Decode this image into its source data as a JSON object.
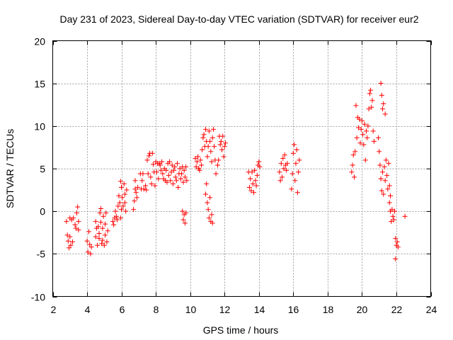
{
  "chart_data": {
    "type": "scatter",
    "title": "Day 231 of 2023, Sidereal Day-to-day VTEC variation (SDTVAR) for receiver eur2",
    "xlabel": "GPS time / hours",
    "ylabel": "SDTVAR / TECUs",
    "xlim": [
      2,
      24
    ],
    "ylim": [
      -10,
      20
    ],
    "xticks": [
      2,
      4,
      6,
      8,
      10,
      12,
      14,
      16,
      18,
      20,
      22,
      24
    ],
    "yticks": [
      -10,
      -5,
      0,
      5,
      10,
      15,
      20
    ],
    "grid": true,
    "marker": "+",
    "color": "#ff0000",
    "series": [
      {
        "name": "SDTVAR",
        "points": [
          [
            2.8,
            -1.2
          ],
          [
            2.85,
            -2.8
          ],
          [
            2.9,
            -3.5
          ],
          [
            2.95,
            -4.3
          ],
          [
            3.0,
            -3.0
          ],
          [
            3.0,
            -0.8
          ],
          [
            3.05,
            -4.0
          ],
          [
            3.1,
            -1.0
          ],
          [
            3.15,
            -3.6
          ],
          [
            3.2,
            -0.8
          ],
          [
            3.3,
            -1.6
          ],
          [
            3.35,
            -2.0
          ],
          [
            3.4,
            -0.2
          ],
          [
            3.45,
            0.5
          ],
          [
            3.5,
            -1.2
          ],
          [
            3.5,
            -2.2
          ],
          [
            4.0,
            -3.5
          ],
          [
            4.05,
            -4.8
          ],
          [
            4.1,
            -2.4
          ],
          [
            4.15,
            -3.9
          ],
          [
            4.2,
            -5.0
          ],
          [
            4.25,
            -4.2
          ],
          [
            4.5,
            -3.0
          ],
          [
            4.5,
            -1.2
          ],
          [
            4.55,
            -2.0
          ],
          [
            4.6,
            -4.0
          ],
          [
            4.65,
            -1.8
          ],
          [
            4.7,
            -3.2
          ],
          [
            4.7,
            -2.6
          ],
          [
            4.75,
            -0.2
          ],
          [
            4.8,
            -1.3
          ],
          [
            4.8,
            0.3
          ],
          [
            4.85,
            -3.8
          ],
          [
            4.9,
            -2.0
          ],
          [
            4.9,
            -3.4
          ],
          [
            4.95,
            -0.6
          ],
          [
            5.0,
            -4.0
          ],
          [
            5.05,
            -1.5
          ],
          [
            5.05,
            -2.8
          ],
          [
            5.1,
            -0.2
          ],
          [
            5.15,
            -3.6
          ],
          [
            5.2,
            -2.3
          ],
          [
            5.5,
            -1.2
          ],
          [
            5.55,
            -1.6
          ],
          [
            5.6,
            -0.8
          ],
          [
            5.65,
            0.0
          ],
          [
            5.7,
            -0.6
          ],
          [
            5.75,
            -1.0
          ],
          [
            5.8,
            0.6
          ],
          [
            5.85,
            1.8
          ],
          [
            5.9,
            1.0
          ],
          [
            5.95,
            -0.8
          ],
          [
            5.95,
            3.5
          ],
          [
            6.0,
            0.2
          ],
          [
            6.0,
            2.8
          ],
          [
            6.05,
            1.6
          ],
          [
            6.1,
            0.6
          ],
          [
            6.15,
            3.2
          ],
          [
            6.2,
            2.0
          ],
          [
            6.2,
            1.0
          ],
          [
            6.25,
            0.0
          ],
          [
            6.3,
            2.5
          ],
          [
            6.7,
            0.2
          ],
          [
            6.75,
            1.2
          ],
          [
            6.8,
            2.6
          ],
          [
            6.8,
            3.6
          ],
          [
            6.85,
            2.2
          ],
          [
            6.9,
            1.6
          ],
          [
            6.95,
            2.8
          ],
          [
            7.1,
            4.4
          ],
          [
            7.15,
            2.6
          ],
          [
            7.2,
            3.6
          ],
          [
            7.25,
            4.4
          ],
          [
            7.3,
            2.6
          ],
          [
            7.4,
            3.0
          ],
          [
            7.45,
            2.5
          ],
          [
            7.5,
            6.0
          ],
          [
            7.55,
            4.4
          ],
          [
            7.6,
            6.5
          ],
          [
            7.65,
            6.8
          ],
          [
            7.7,
            4.0
          ],
          [
            7.75,
            3.2
          ],
          [
            7.8,
            6.8
          ],
          [
            7.85,
            5.5
          ],
          [
            7.9,
            4.6
          ],
          [
            7.95,
            3.0
          ],
          [
            8.0,
            5.8
          ],
          [
            8.05,
            4.6
          ],
          [
            8.1,
            5.6
          ],
          [
            8.15,
            3.8
          ],
          [
            8.2,
            5.6
          ],
          [
            8.25,
            5.4
          ],
          [
            8.3,
            4.8
          ],
          [
            8.35,
            5.8
          ],
          [
            8.4,
            4.4
          ],
          [
            8.45,
            3.8
          ],
          [
            8.5,
            5.0
          ],
          [
            8.55,
            3.6
          ],
          [
            8.6,
            4.8
          ],
          [
            8.65,
            3.4
          ],
          [
            8.7,
            5.6
          ],
          [
            8.75,
            4.2
          ],
          [
            8.8,
            5.8
          ],
          [
            8.85,
            3.6
          ],
          [
            8.9,
            4.6
          ],
          [
            8.95,
            5.4
          ],
          [
            9.0,
            3.2
          ],
          [
            9.05,
            4.8
          ],
          [
            9.1,
            5.2
          ],
          [
            9.15,
            4.0
          ],
          [
            9.2,
            3.6
          ],
          [
            9.25,
            5.6
          ],
          [
            9.3,
            2.8
          ],
          [
            9.35,
            4.4
          ],
          [
            9.4,
            5.0
          ],
          [
            9.45,
            3.8
          ],
          [
            9.5,
            4.4
          ],
          [
            9.55,
            5.2
          ],
          [
            9.6,
            3.4
          ],
          [
            9.65,
            4.8
          ],
          [
            9.7,
            4.0
          ],
          [
            9.75,
            5.2
          ],
          [
            9.8,
            3.6
          ],
          [
            9.55,
            0.0
          ],
          [
            9.6,
            -1.0
          ],
          [
            9.65,
            -0.4
          ],
          [
            9.7,
            -1.4
          ],
          [
            9.75,
            -0.2
          ],
          [
            10.3,
            6.2
          ],
          [
            10.35,
            5.2
          ],
          [
            10.4,
            5.8
          ],
          [
            10.45,
            6.4
          ],
          [
            10.5,
            5.0
          ],
          [
            10.55,
            4.8
          ],
          [
            10.6,
            6.0
          ],
          [
            10.65,
            5.4
          ],
          [
            10.7,
            7.2
          ],
          [
            10.75,
            8.6
          ],
          [
            10.8,
            9.0
          ],
          [
            10.85,
            7.6
          ],
          [
            10.9,
            9.6
          ],
          [
            10.95,
            8.2
          ],
          [
            11.0,
            6.4
          ],
          [
            11.05,
            7.6
          ],
          [
            11.1,
            9.4
          ],
          [
            11.15,
            8.2
          ],
          [
            11.2,
            7.0
          ],
          [
            11.25,
            5.8
          ],
          [
            11.3,
            8.6
          ],
          [
            11.35,
            9.6
          ],
          [
            11.4,
            7.6
          ],
          [
            11.45,
            6.0
          ],
          [
            11.5,
            4.4
          ],
          [
            10.9,
            2.0
          ],
          [
            10.95,
            3.2
          ],
          [
            11.0,
            1.0
          ],
          [
            11.05,
            0.2
          ],
          [
            11.1,
            -0.8
          ],
          [
            11.15,
            1.6
          ],
          [
            11.2,
            -1.2
          ],
          [
            11.25,
            -0.4
          ],
          [
            11.3,
            -1.4
          ],
          [
            11.6,
            5.4
          ],
          [
            11.65,
            6.0
          ],
          [
            11.7,
            8.8
          ],
          [
            11.75,
            7.8
          ],
          [
            11.8,
            8.2
          ],
          [
            11.85,
            7.2
          ],
          [
            11.9,
            8.8
          ],
          [
            11.95,
            6.4
          ],
          [
            12.0,
            7.6
          ],
          [
            12.05,
            8.0
          ],
          [
            13.4,
            4.6
          ],
          [
            13.45,
            2.8
          ],
          [
            13.5,
            3.8
          ],
          [
            13.55,
            2.4
          ],
          [
            13.6,
            4.6
          ],
          [
            13.65,
            3.2
          ],
          [
            13.7,
            2.2
          ],
          [
            13.75,
            4.8
          ],
          [
            13.8,
            3.6
          ],
          [
            13.85,
            3.0
          ],
          [
            13.9,
            4.2
          ],
          [
            13.95,
            5.4
          ],
          [
            14.0,
            5.8
          ],
          [
            14.05,
            5.2
          ],
          [
            15.2,
            4.6
          ],
          [
            15.25,
            3.6
          ],
          [
            15.3,
            5.6
          ],
          [
            15.35,
            4.0
          ],
          [
            15.4,
            6.2
          ],
          [
            15.45,
            5.0
          ],
          [
            15.5,
            6.6
          ],
          [
            15.55,
            5.4
          ],
          [
            15.6,
            4.8
          ],
          [
            15.65,
            5.6
          ],
          [
            15.9,
            2.6
          ],
          [
            15.95,
            4.4
          ],
          [
            16.0,
            6.8
          ],
          [
            16.05,
            7.8
          ],
          [
            16.1,
            3.6
          ],
          [
            16.15,
            5.6
          ],
          [
            16.2,
            7.2
          ],
          [
            16.25,
            2.2
          ],
          [
            16.3,
            4.6
          ],
          [
            16.35,
            6.0
          ],
          [
            19.4,
            4.6
          ],
          [
            19.45,
            5.4
          ],
          [
            19.5,
            6.6
          ],
          [
            19.55,
            4.0
          ],
          [
            19.6,
            7.0
          ],
          [
            19.65,
            12.4
          ],
          [
            19.7,
            8.6
          ],
          [
            19.75,
            11.0
          ],
          [
            19.8,
            9.8
          ],
          [
            19.85,
            10.8
          ],
          [
            19.9,
            8.0
          ],
          [
            19.95,
            9.6
          ],
          [
            20.0,
            10.6
          ],
          [
            20.05,
            9.0
          ],
          [
            20.1,
            7.8
          ],
          [
            20.15,
            10.2
          ],
          [
            20.2,
            6.0
          ],
          [
            20.25,
            9.4
          ],
          [
            20.3,
            8.6
          ],
          [
            20.35,
            10.0
          ],
          [
            20.4,
            12.0
          ],
          [
            20.45,
            13.8
          ],
          [
            20.5,
            14.2
          ],
          [
            20.55,
            12.2
          ],
          [
            20.6,
            13.0
          ],
          [
            20.65,
            9.4
          ],
          [
            20.7,
            8.2
          ],
          [
            20.95,
            8.6
          ],
          [
            21.0,
            7.0
          ],
          [
            21.05,
            5.4
          ],
          [
            21.1,
            3.8
          ],
          [
            21.15,
            2.4
          ],
          [
            21.2,
            4.6
          ],
          [
            21.25,
            2.0
          ],
          [
            21.3,
            5.2
          ],
          [
            21.35,
            3.6
          ],
          [
            21.4,
            6.0
          ],
          [
            21.45,
            4.2
          ],
          [
            21.5,
            2.6
          ],
          [
            21.55,
            5.6
          ],
          [
            21.6,
            3.0
          ],
          [
            21.65,
            1.8
          ],
          [
            21.1,
            15.0
          ],
          [
            21.15,
            13.6
          ],
          [
            21.2,
            12.0
          ],
          [
            21.25,
            12.6
          ],
          [
            21.35,
            11.4
          ],
          [
            21.6,
            1.0
          ],
          [
            21.65,
            0.0
          ],
          [
            21.7,
            -1.2
          ],
          [
            21.75,
            0.2
          ],
          [
            21.8,
            -0.6
          ],
          [
            21.85,
            -1.0
          ],
          [
            21.9,
            0.0
          ],
          [
            21.95,
            -3.2
          ],
          [
            22.0,
            -4.0
          ],
          [
            22.05,
            -3.6
          ],
          [
            22.1,
            -4.2
          ],
          [
            21.95,
            -5.6
          ],
          [
            22.5,
            -0.6
          ]
        ]
      }
    ]
  }
}
